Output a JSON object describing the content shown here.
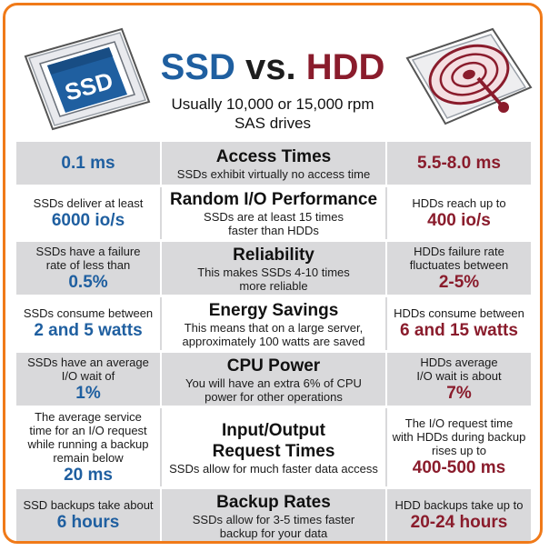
{
  "title": {
    "ssd": "SSD",
    "vs": "vs.",
    "hdd": "HDD"
  },
  "subtitle_line1": "Usually 10,000 or 15,000 rpm",
  "subtitle_line2": "SAS drives",
  "ssd_label": "SSD",
  "colors": {
    "border": "#f07a19",
    "ssd_blue": "#1f5fa0",
    "hdd_red": "#8a1c2c",
    "row_gray": "#d9d9db"
  },
  "rows": [
    {
      "title": [
        "Access Times"
      ],
      "desc": [
        "SSDs exhibit virtually no access time"
      ],
      "ssd_note": [],
      "ssd_value": "0.1 ms",
      "hdd_note": [],
      "hdd_value": "5.5-8.0 ms"
    },
    {
      "title": [
        "Random I/O Performance"
      ],
      "desc": [
        "SSDs are at least 15 times",
        "faster than HDDs"
      ],
      "ssd_note": [
        "SSDs deliver at least"
      ],
      "ssd_value": "6000 io/s",
      "hdd_note": [
        "HDDs reach up to"
      ],
      "hdd_value": "400 io/s"
    },
    {
      "title": [
        "Reliability"
      ],
      "desc": [
        "This makes SSDs 4-10 times",
        "more reliable"
      ],
      "ssd_note": [
        "SSDs have a failure",
        "rate of less than"
      ],
      "ssd_value": "0.5%",
      "hdd_note": [
        "HDDs failure rate",
        "fluctuates between"
      ],
      "hdd_value": "2-5%"
    },
    {
      "title": [
        "Energy Savings"
      ],
      "desc": [
        "This means that on a large server,",
        "approximately 100 watts are saved"
      ],
      "ssd_note": [
        "SSDs consume between"
      ],
      "ssd_value": "2 and 5 watts",
      "hdd_note": [
        "HDDs consume between"
      ],
      "hdd_value": "6 and 15 watts"
    },
    {
      "title": [
        "CPU Power"
      ],
      "desc": [
        "You will have an extra 6% of CPU",
        "power for other operations"
      ],
      "ssd_note": [
        "SSDs have an average",
        "I/O wait of"
      ],
      "ssd_value": "1%",
      "hdd_note": [
        "HDDs average",
        "I/O wait is about"
      ],
      "hdd_value": "7%"
    },
    {
      "title": [
        "Input/Output",
        "Request Times"
      ],
      "desc": [
        "SSDs allow for much faster data access"
      ],
      "ssd_note": [
        "The average service",
        "time for an I/O request",
        "while running a backup",
        "remain below"
      ],
      "ssd_value": "20 ms",
      "hdd_note": [
        "The I/O request time",
        "with HDDs during backup",
        "rises up to"
      ],
      "hdd_value": "400-500 ms"
    },
    {
      "title": [
        "Backup Rates"
      ],
      "desc": [
        "SSDs allow for 3-5 times faster",
        "backup for your data"
      ],
      "ssd_note": [
        "SSD backups take about"
      ],
      "ssd_value": "6 hours",
      "hdd_note": [
        "HDD backups take up to"
      ],
      "hdd_value": "20-24 hours"
    }
  ]
}
